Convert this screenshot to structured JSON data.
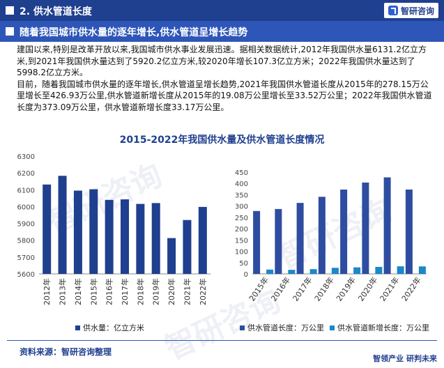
{
  "header": {
    "section_title": "2. 供水管道长度",
    "logo_text": "智研咨询"
  },
  "headline": "随着我国城市供水量的逐年增长,供水管道呈增长趋势",
  "paragraphs": [
    "建国以来,特别是改革开放以来,我国城市供水事业发展迅速。据相关数据统计,2012年我国供水量6131.2亿立方米,到2021年我国供水量达到了5920.2亿立方米,较2020年增长107.3亿立方米；2022年我国供水量达到了5998.2亿立方米。",
    "目前，随着我国城市供水量的逐年增长,供水管道呈增长趋势,2021年我国供水管道长度从2015年的278.15万公里增长至426.93万公里,供水管道新增长度从2015年的19.08万公里增长至33.52万公里；2022年我国供水管道长度为373.09万公里，供水管道新增长度33.17万公里。"
  ],
  "chart_title": "2015-2022年我国供水量及供水管道长度情况",
  "chart_data": [
    {
      "type": "bar",
      "categories": [
        "2012年",
        "2013年",
        "2014年",
        "2015年",
        "2016年",
        "2017年",
        "2018年",
        "2019年",
        "2020年",
        "2021年",
        "2022年"
      ],
      "series": [
        {
          "name": "供水量：亿立方米",
          "color": "#1f3f8f",
          "values": [
            6131.2,
            6183,
            6095,
            6103,
            6040,
            6043,
            6016,
            6021,
            5812.9,
            5920.2,
            5998.2
          ]
        }
      ],
      "ylim": [
        5600,
        6300
      ],
      "yticks": [
        5600,
        5700,
        5800,
        5900,
        6000,
        6100,
        6200,
        6300
      ],
      "grid": false,
      "legend": "bottom"
    },
    {
      "type": "bar",
      "categories": [
        "2015年",
        "2016年",
        "2017年",
        "2018年",
        "2019年",
        "2020年",
        "2021年",
        "2022年"
      ],
      "series": [
        {
          "name": "供水管道长度：万公里",
          "color": "#2e4da0",
          "values": [
            278.15,
            287,
            314,
            341,
            373,
            404,
            426.93,
            373.09
          ]
        },
        {
          "name": "供水管道新增长度：万公里",
          "color": "#1a88c9",
          "values": [
            19.08,
            18,
            21,
            27,
            29,
            31,
            33.52,
            33.17
          ]
        }
      ],
      "ylim": [
        0,
        450
      ],
      "yticks": [
        0,
        50,
        100,
        150,
        200,
        250,
        300,
        350,
        400,
        450
      ],
      "grid": false,
      "legend": "bottom"
    }
  ],
  "source": "资料来源：智研咨询整理",
  "slogan": "智领产业  研判未来",
  "watermark": "智研咨询"
}
